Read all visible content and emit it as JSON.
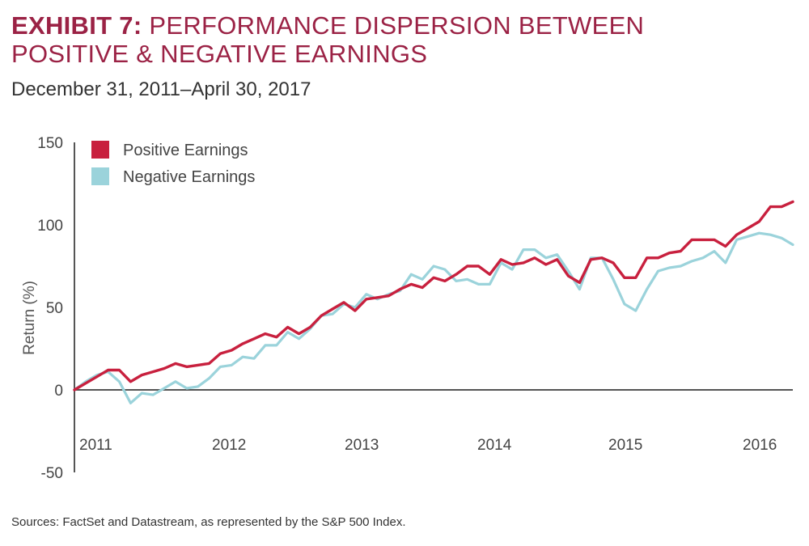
{
  "header": {
    "title_lead": "EXHIBIT 7:",
    "title_rest_line1": "PERFORMANCE DISPERSION BETWEEN",
    "title_rest_line2": "POSITIVE & NEGATIVE EARNINGS",
    "subtitle": "December 31, 2011–April 30, 2017"
  },
  "footer": {
    "source": "Sources: FactSet and Datastream, as represented by the S&P 500 Index."
  },
  "chart_data": {
    "type": "line",
    "title": "",
    "xlabel": "",
    "ylabel": "Return (%)",
    "ylim": [
      -50,
      150
    ],
    "yticks": [
      150,
      100,
      50,
      0,
      -50
    ],
    "x_tick_labels": [
      "2011",
      "2012",
      "2013",
      "2014",
      "2015",
      "2016"
    ],
    "x_period": "monthly, 65 observations starting at 0",
    "legend_position": "top-left",
    "grid": false,
    "series": [
      {
        "name": "Positive Earnings",
        "color": "#c8203e",
        "values": [
          0,
          4,
          8,
          12,
          12,
          5,
          9,
          11,
          13,
          16,
          14,
          15,
          16,
          22,
          24,
          28,
          31,
          34,
          32,
          38,
          34,
          38,
          45,
          49,
          53,
          48,
          55,
          56,
          57,
          61,
          64,
          62,
          68,
          66,
          70,
          75,
          75,
          70,
          79,
          76,
          77,
          80,
          76,
          79,
          69,
          65,
          79,
          80,
          77,
          68,
          68,
          80,
          80,
          83,
          84,
          91,
          91,
          91,
          87,
          94,
          98,
          102,
          111,
          111,
          114
        ]
      },
      {
        "name": "Negative Earnings",
        "color": "#9bd3db",
        "values": [
          0,
          5,
          9,
          11,
          5,
          -8,
          -2,
          -3,
          1,
          5,
          1,
          2,
          7,
          14,
          15,
          20,
          19,
          27,
          27,
          35,
          31,
          37,
          45,
          46,
          52,
          50,
          58,
          55,
          58,
          60,
          70,
          67,
          75,
          73,
          66,
          67,
          64,
          64,
          77,
          73,
          85,
          85,
          80,
          82,
          72,
          61,
          80,
          80,
          67,
          52,
          48,
          61,
          72,
          74,
          75,
          78,
          80,
          84,
          77,
          91,
          93,
          95,
          94,
          92,
          88
        ]
      }
    ]
  }
}
